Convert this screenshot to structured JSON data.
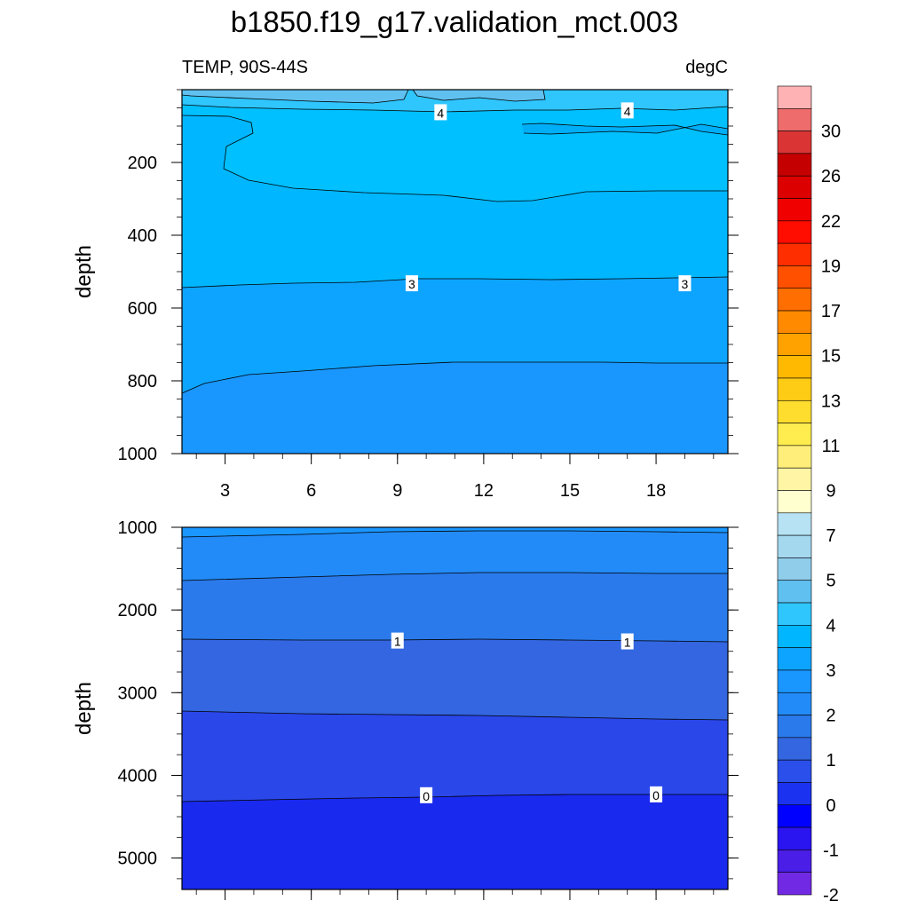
{
  "title": "b1850.f19_g17.validation_mct.003",
  "subtitle_left": "TEMP, 90S-44S",
  "subtitle_right": "degC",
  "chart_data": {
    "type": "contour",
    "upper_panel": {
      "ylabel": "depth",
      "ylim": [
        1000,
        0
      ],
      "yticks": [
        "200",
        "400",
        "600",
        "800",
        "1000"
      ],
      "xticks": [
        "3",
        "6",
        "9",
        "12",
        "15",
        "18"
      ],
      "xlim": [
        1.5,
        20.5
      ],
      "contour_labels": [
        {
          "text": "4",
          "x": 10.5,
          "depth": 62
        },
        {
          "text": "4",
          "x": 17.0,
          "depth": 57
        },
        {
          "text": "3",
          "x": 9.5,
          "depth": 532
        },
        {
          "text": "3",
          "x": 19.0,
          "depth": 532
        }
      ]
    },
    "lower_panel": {
      "ylabel": "depth",
      "ylim": [
        5380,
        1000
      ],
      "yticks": [
        "1000",
        "2000",
        "3000",
        "4000",
        "5000"
      ],
      "xlim": [
        1.5,
        20.5
      ],
      "contour_labels": [
        {
          "text": "1",
          "x": 9.0,
          "depth": 2370
        },
        {
          "text": "1",
          "x": 17.0,
          "depth": 2380
        },
        {
          "text": "0",
          "x": 10.0,
          "depth": 4240
        },
        {
          "text": "0",
          "x": 18.0,
          "depth": 4230
        }
      ]
    },
    "colorbar": {
      "tick_labels": [
        "30",
        "26",
        "22",
        "19",
        "17",
        "15",
        "13",
        "11",
        "9",
        "7",
        "5",
        "4",
        "3",
        "2",
        "1",
        "0",
        "-1",
        "-2"
      ],
      "colors": [
        "#ffb2b3",
        "#ee6c6c",
        "#db3434",
        "#c50000",
        "#dd0000",
        "#f10000",
        "#ff0d00",
        "#ff2e00",
        "#ff5000",
        "#ff6e00",
        "#ff8a00",
        "#ffa200",
        "#ffb900",
        "#ffcc15",
        "#ffdd2e",
        "#ffec4e",
        "#ffef7a",
        "#fff5a5",
        "#ffffcf",
        "#b6e2f3",
        "#a4d8ef",
        "#8fcdeb",
        "#60c1f0",
        "#2fc5fd",
        "#00b7ff",
        "#0da4ff",
        "#1a96ff",
        "#228bf7",
        "#2a7aeb",
        "#3366e0",
        "#2a4fea",
        "#1b33f0",
        "#0000ff",
        "#2a14f0",
        "#4a1ee6",
        "#7129e3"
      ]
    }
  }
}
